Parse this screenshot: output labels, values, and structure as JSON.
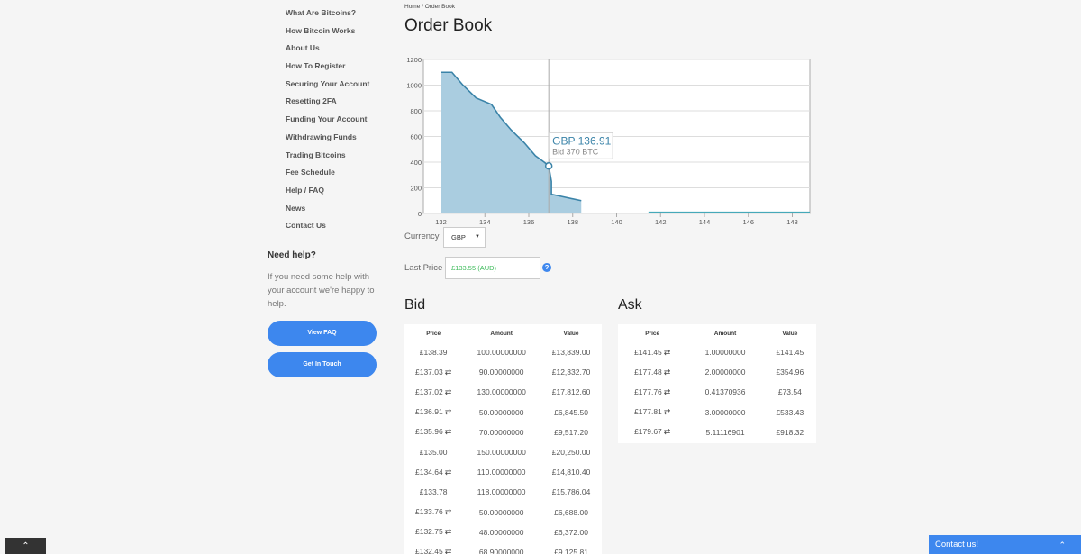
{
  "sidebar": {
    "items": [
      "What Are Bitcoins?",
      "How Bitcoin Works",
      "About Us",
      "How To Register",
      "Securing Your Account",
      "Resetting 2FA",
      "Funding Your Account",
      "Withdrawing Funds",
      "Trading Bitcoins",
      "Fee Schedule",
      "Help / FAQ",
      "News",
      "Contact Us"
    ]
  },
  "help": {
    "title": "Need help?",
    "text": "If you need some help with your account we're happy to help.",
    "faq_button": "View FAQ",
    "touch_button": "Get In Touch"
  },
  "breadcrumb": "Home / Order Book",
  "page_title": "Order Book",
  "chart_data": {
    "type": "area",
    "x_ticks": [
      132,
      134,
      136,
      138,
      140,
      142,
      144,
      146,
      148
    ],
    "y_ticks": [
      0,
      200,
      400,
      600,
      800,
      1000,
      1200
    ],
    "xlim": [
      131.2,
      148.8
    ],
    "ylim": [
      0,
      1200
    ],
    "grid": true,
    "bid_series": [
      [
        132.0,
        1100
      ],
      [
        132.5,
        1100
      ],
      [
        133.0,
        1000
      ],
      [
        133.6,
        900
      ],
      [
        134.3,
        850
      ],
      [
        134.7,
        750
      ],
      [
        135.2,
        650
      ],
      [
        135.8,
        550
      ],
      [
        136.3,
        450
      ],
      [
        136.7,
        400
      ],
      [
        136.91,
        370
      ],
      [
        137.03,
        250
      ],
      [
        137.03,
        150
      ],
      [
        138.39,
        100
      ]
    ],
    "ask_series": [
      [
        141.45,
        1
      ],
      [
        148.8,
        1
      ]
    ],
    "colors": {
      "bid_line": "#3a83a8",
      "bid_fill": "#aacde0",
      "ask_line": "#45a9b9",
      "grid": "#dddddd",
      "crosshair": "#aaaaaa"
    },
    "tooltip": {
      "x": 136.91,
      "y": 370,
      "price": "GBP 136.91",
      "detail": "Bid 370 BTC"
    }
  },
  "controls": {
    "currency_label": "Currency",
    "currency_value": "GBP",
    "last_price_label": "Last Price",
    "last_price_value": "£133.55 (AUD)"
  },
  "bid": {
    "title": "Bid",
    "headers": [
      "Price",
      "Amount",
      "Value"
    ],
    "rows": [
      [
        "£138.39",
        "100.00000000",
        "£13,839.00",
        false
      ],
      [
        "£137.03",
        "90.00000000",
        "£12,332.70",
        true
      ],
      [
        "£137.02",
        "130.00000000",
        "£17,812.60",
        true
      ],
      [
        "£136.91",
        "50.00000000",
        "£6,845.50",
        true
      ],
      [
        "£135.96",
        "70.00000000",
        "£9,517.20",
        true
      ],
      [
        "£135.00",
        "150.00000000",
        "£20,250.00",
        false
      ],
      [
        "£134.64",
        "110.00000000",
        "£14,810.40",
        true
      ],
      [
        "£133.78",
        "118.00000000",
        "£15,786.04",
        false
      ],
      [
        "£133.76",
        "50.00000000",
        "£6,688.00",
        true
      ],
      [
        "£132.75",
        "48.00000000",
        "£6,372.00",
        true
      ],
      [
        "£132.45",
        "68.90000000",
        "£9,125.81",
        true
      ]
    ]
  },
  "ask": {
    "title": "Ask",
    "headers": [
      "Price",
      "Amount",
      "Value"
    ],
    "rows": [
      [
        "£141.45",
        "1.00000000",
        "£141.45",
        true
      ],
      [
        "£177.48",
        "2.00000000",
        "£354.96",
        true
      ],
      [
        "£177.76",
        "0.41370936",
        "£73.54",
        true
      ],
      [
        "£177.81",
        "3.00000000",
        "£533.43",
        true
      ],
      [
        "£179.67",
        "5.11116901",
        "£918.32",
        true
      ]
    ]
  },
  "contact_bar": "Contact us!",
  "icons": {
    "swap": "⇄",
    "scroll_up": "⌃",
    "caret": "▼",
    "chevron_up": "⌃",
    "info": "?"
  }
}
